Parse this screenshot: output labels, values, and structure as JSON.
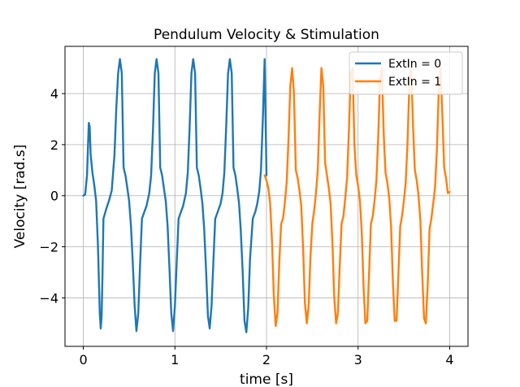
{
  "chart_data": {
    "type": "line",
    "title": "Pendulum Velocity & Stimulation",
    "xlabel": "time [s]",
    "ylabel": "Velocity [rad.s]",
    "xlim": [
      -0.2,
      4.2
    ],
    "ylim": [
      -5.9,
      5.85
    ],
    "xticks": [
      0,
      1,
      2,
      3,
      4
    ],
    "yticks": [
      -4,
      -2,
      0,
      2,
      4
    ],
    "xtick_labels": [
      "0",
      "1",
      "2",
      "3",
      "4"
    ],
    "ytick_labels": [
      "−4",
      "−2",
      "0",
      "2",
      "4"
    ],
    "grid": true,
    "legend_position": "upper right",
    "series": [
      {
        "name": "ExtIn = 0",
        "color": "#1f77b4",
        "x": [
          0,
          0.02,
          0.04,
          0.06,
          0.07,
          0.08,
          0.1,
          0.12,
          0.14,
          0.16,
          0.18,
          0.19,
          0.2,
          0.21,
          0.22,
          0.24,
          0.26,
          0.28,
          0.31,
          0.34,
          0.36,
          0.38,
          0.4,
          0.42,
          0.44,
          0.46,
          0.48,
          0.5,
          0.52,
          0.54,
          0.56,
          0.58,
          0.6,
          0.62,
          0.64,
          0.66,
          0.69,
          0.72,
          0.74,
          0.76,
          0.78,
          0.8,
          0.82,
          0.84,
          0.86,
          0.88,
          0.9,
          0.92,
          0.94,
          0.96,
          0.98,
          1.0,
          1.02,
          1.04,
          1.06,
          1.09,
          1.12,
          1.14,
          1.16,
          1.18,
          1.2,
          1.22,
          1.24,
          1.26,
          1.28,
          1.3,
          1.32,
          1.34,
          1.36,
          1.38,
          1.4,
          1.42,
          1.44,
          1.47,
          1.5,
          1.52,
          1.54,
          1.56,
          1.58,
          1.6,
          1.62,
          1.64,
          1.66,
          1.68,
          1.7,
          1.72,
          1.74,
          1.76,
          1.78,
          1.8,
          1.82,
          1.85,
          1.88,
          1.9,
          1.92,
          1.94,
          1.96,
          1.98,
          2.0
        ],
        "y": [
          0.0,
          0.05,
          0.8,
          2.85,
          2.7,
          1.6,
          0.9,
          0.4,
          -0.2,
          -2.0,
          -4.6,
          -5.2,
          -4.7,
          -3.0,
          -0.9,
          -0.65,
          -0.4,
          -0.2,
          0.2,
          1.6,
          3.4,
          4.8,
          5.35,
          4.8,
          1.1,
          0.8,
          0.3,
          -0.2,
          -1.2,
          -2.6,
          -4.3,
          -5.3,
          -4.6,
          -2.7,
          -0.9,
          -0.7,
          -0.4,
          0.1,
          0.8,
          2.5,
          4.8,
          5.35,
          4.8,
          1.1,
          0.8,
          0.3,
          -0.2,
          -1.2,
          -2.8,
          -4.6,
          -5.3,
          -4.3,
          -2.6,
          -0.9,
          -0.7,
          -0.4,
          0.1,
          0.9,
          2.6,
          4.8,
          5.35,
          4.8,
          1.1,
          0.8,
          0.3,
          -0.3,
          -1.3,
          -2.9,
          -4.7,
          -5.2,
          -4.3,
          -2.6,
          -0.9,
          -0.6,
          -0.3,
          0.1,
          0.9,
          2.7,
          4.8,
          5.35,
          4.8,
          1.1,
          0.8,
          0.3,
          -0.3,
          -1.4,
          -3.0,
          -4.9,
          -5.35,
          -4.4,
          -2.5,
          -0.9,
          -0.6,
          -0.3,
          0.15,
          1.0,
          3.0,
          5.35,
          0.8
        ]
      },
      {
        "name": "ExtIn = 1",
        "color": "#ff7f0e",
        "x": [
          1.98,
          2.0,
          2.02,
          2.04,
          2.06,
          2.08,
          2.1,
          2.12,
          2.14,
          2.16,
          2.18,
          2.2,
          2.22,
          2.24,
          2.26,
          2.28,
          2.3,
          2.32,
          2.34,
          2.36,
          2.38,
          2.4,
          2.42,
          2.44,
          2.46,
          2.48,
          2.5,
          2.52,
          2.54,
          2.56,
          2.58,
          2.6,
          2.62,
          2.64,
          2.66,
          2.68,
          2.7,
          2.72,
          2.74,
          2.76,
          2.78,
          2.8,
          2.82,
          2.84,
          2.86,
          2.88,
          2.9,
          2.92,
          2.94,
          2.96,
          2.98,
          3.0,
          3.02,
          3.04,
          3.06,
          3.08,
          3.1,
          3.12,
          3.14,
          3.16,
          3.18,
          3.2,
          3.22,
          3.24,
          3.26,
          3.28,
          3.3,
          3.32,
          3.34,
          3.36,
          3.38,
          3.4,
          3.42,
          3.44,
          3.46,
          3.48,
          3.5,
          3.52,
          3.54,
          3.56,
          3.58,
          3.6,
          3.62,
          3.64,
          3.66,
          3.68,
          3.7,
          3.72,
          3.74,
          3.76,
          3.78,
          3.8,
          3.82,
          3.84,
          3.86,
          3.88,
          3.9,
          3.92,
          3.94,
          3.96,
          3.98,
          4.0
        ],
        "y": [
          0.8,
          0.6,
          0.3,
          -0.3,
          -1.8,
          -3.9,
          -5.1,
          -4.6,
          -2.6,
          -1.1,
          -0.9,
          -0.3,
          0.5,
          2.2,
          4.3,
          5.0,
          4.0,
          1.0,
          0.7,
          0.2,
          -0.4,
          -2.1,
          -4.2,
          -5.0,
          -4.3,
          -2.4,
          -1.1,
          -0.6,
          0.1,
          1.0,
          3.2,
          5.0,
          4.3,
          1.3,
          0.8,
          0.3,
          -0.3,
          -1.9,
          -4.0,
          -5.0,
          -4.6,
          -2.7,
          -1.1,
          -0.8,
          -0.1,
          0.7,
          2.6,
          4.8,
          5.0,
          2.0,
          0.8,
          0.4,
          -0.2,
          -1.4,
          -3.6,
          -5.0,
          -4.9,
          -3.0,
          -1.1,
          -0.8,
          -0.2,
          0.6,
          2.3,
          4.6,
          5.0,
          2.4,
          0.9,
          0.5,
          -0.1,
          -1.2,
          -3.4,
          -4.9,
          -4.9,
          -3.1,
          -1.2,
          -0.8,
          -0.2,
          0.5,
          2.1,
          4.4,
          5.0,
          2.7,
          1.0,
          0.6,
          0.0,
          -1.0,
          -3.0,
          -4.8,
          -5.0,
          -3.5,
          -1.3,
          -0.9,
          -0.3,
          0.3,
          1.8,
          4.0,
          5.0,
          3.2,
          1.1,
          0.7,
          0.1,
          0.15
        ]
      }
    ]
  }
}
